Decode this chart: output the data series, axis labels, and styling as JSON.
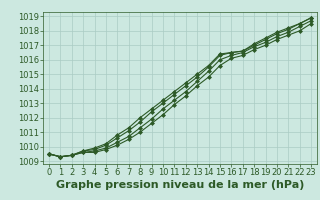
{
  "background_color": "#cce8e0",
  "grid_color": "#aaccc4",
  "line_color": "#2d5a27",
  "title": "Graphe pression niveau de la mer (hPa)",
  "xlim": [
    0,
    23
  ],
  "ylim": [
    1009,
    1019
  ],
  "xticks": [
    0,
    1,
    2,
    3,
    4,
    5,
    6,
    7,
    8,
    9,
    10,
    11,
    12,
    13,
    14,
    15,
    16,
    17,
    18,
    19,
    20,
    21,
    22,
    23
  ],
  "yticks": [
    1009,
    1010,
    1011,
    1012,
    1013,
    1014,
    1015,
    1016,
    1017,
    1018,
    1019
  ],
  "series": [
    [
      1009.5,
      1009.3,
      1009.4,
      1009.6,
      1009.6,
      1009.8,
      1010.1,
      1010.5,
      1011.0,
      1011.6,
      1012.2,
      1012.9,
      1013.5,
      1014.2,
      1014.8,
      1015.6,
      1016.1,
      1016.3,
      1016.7,
      1017.0,
      1017.4,
      1017.7,
      1018.0,
      1018.5
    ],
    [
      1009.5,
      1009.3,
      1009.4,
      1009.6,
      1009.7,
      1009.9,
      1010.3,
      1010.7,
      1011.3,
      1011.9,
      1012.6,
      1013.2,
      1013.8,
      1014.5,
      1015.2,
      1016.0,
      1016.3,
      1016.5,
      1016.9,
      1017.2,
      1017.6,
      1017.9,
      1018.3,
      1018.7
    ],
    [
      1009.5,
      1009.3,
      1009.4,
      1009.7,
      1009.8,
      1010.1,
      1010.6,
      1011.1,
      1011.7,
      1012.4,
      1013.0,
      1013.6,
      1014.2,
      1014.8,
      1015.5,
      1016.3,
      1016.5,
      1016.6,
      1017.0,
      1017.4,
      1017.8,
      1018.1,
      1018.5,
      1018.9
    ],
    [
      1009.5,
      1009.3,
      1009.4,
      1009.7,
      1009.9,
      1010.2,
      1010.8,
      1011.3,
      1012.0,
      1012.6,
      1013.2,
      1013.8,
      1014.4,
      1015.0,
      1015.6,
      1016.4,
      1016.5,
      1016.6,
      1017.1,
      1017.5,
      1017.9,
      1018.2,
      1018.5,
      1018.9
    ]
  ],
  "marker": "D",
  "marker_size": 2.0,
  "linewidth": 0.8,
  "title_fontsize": 8,
  "tick_fontsize": 6,
  "title_color": "#2d5a27",
  "tick_color": "#2d5a27",
  "spine_color": "#2d5a27"
}
